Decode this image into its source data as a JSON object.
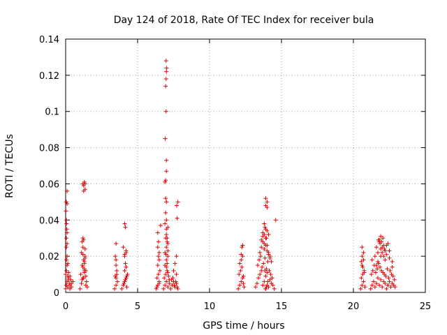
{
  "chart_data": {
    "type": "scatter",
    "title": "Day 124 of 2018, Rate Of TEC Index for receiver bula",
    "xlabel": "GPS time / hours",
    "ylabel": "ROTI / TECUs",
    "xlim": [
      0,
      25
    ],
    "ylim": [
      0,
      0.14
    ],
    "xticks": [
      0,
      5,
      10,
      15,
      20,
      25
    ],
    "yticks": [
      0,
      0.02,
      0.04,
      0.06,
      0.08,
      0.1,
      0.12,
      0.14
    ],
    "xtick_labels": [
      "0",
      "5",
      "10",
      "15",
      "20",
      "25"
    ],
    "ytick_labels": [
      "0",
      "0.02",
      "0.04",
      "0.06",
      "0.08",
      "0.1",
      "0.12",
      "0.14"
    ],
    "grid": true,
    "marker": "+",
    "color": "#e00000",
    "series": [
      {
        "name": "ROTI",
        "x": [
          0.0,
          0.05,
          0.1,
          0.15,
          0.2,
          0.25,
          0.3,
          0.0,
          0.05,
          0.1,
          0.15,
          0.2,
          0.3,
          0.4,
          0.5,
          0.05,
          0.1,
          0.15,
          0.05,
          0.1,
          0.05,
          0.1,
          0.08,
          0.05,
          0.1,
          0.05,
          0.1,
          0.02,
          0.06,
          0.2,
          0.3,
          0.4,
          0.35,
          1.0,
          1.1,
          1.2,
          1.3,
          1.4,
          1.5,
          1.05,
          1.15,
          1.25,
          1.35,
          1.45,
          1.1,
          1.2,
          1.3,
          1.4,
          1.15,
          1.25,
          1.35,
          1.2,
          1.3,
          1.2,
          1.3,
          1.25,
          1.15,
          1.35,
          1.2,
          1.3,
          1.4,
          1.25,
          1.35,
          1.2,
          1.3,
          1.25,
          1.35,
          3.4,
          3.5,
          3.6,
          3.45,
          3.55,
          3.5,
          3.5,
          3.45,
          3.55,
          3.5,
          3.5,
          3.9,
          4.0,
          4.1,
          4.2,
          4.3,
          4.05,
          4.15,
          4.25,
          4.1,
          4.2,
          4.15,
          4.25,
          4.1,
          4.2,
          4.0,
          4.1,
          4.2,
          4.1,
          4.15,
          6.3,
          6.4,
          6.5,
          6.35,
          6.45,
          6.55,
          6.4,
          6.5,
          6.45,
          6.5,
          6.4,
          6.45,
          6.35,
          6.5,
          6.4,
          6.6,
          6.8,
          6.9,
          7.0,
          7.1,
          7.2,
          6.85,
          6.95,
          7.05,
          7.15,
          6.9,
          7.0,
          7.1,
          7.2,
          6.9,
          7.0,
          7.1,
          7.05,
          6.95,
          7.0,
          7.1,
          7.0,
          7.05,
          6.9,
          7.0,
          7.1,
          6.95,
          7.0,
          6.95,
          6.9,
          6.95,
          7.0,
          7.0,
          6.92,
          6.98,
          6.95,
          6.98,
          7.0,
          7.02,
          6.98,
          6.97,
          7.05,
          7.0,
          7.1,
          7.3,
          7.4,
          7.5,
          7.6,
          7.7,
          7.8,
          7.35,
          7.45,
          7.55,
          7.65,
          7.75,
          7.5,
          7.6,
          7.7,
          7.75,
          7.72,
          7.8,
          7.7,
          12.0,
          12.1,
          12.2,
          12.3,
          12.4,
          12.05,
          12.15,
          12.25,
          12.35,
          12.1,
          12.2,
          12.3,
          12.2,
          12.35,
          12.25,
          12.3,
          13.2,
          13.3,
          13.4,
          13.5,
          13.6,
          13.7,
          13.8,
          13.9,
          14.0,
          14.1,
          14.2,
          14.3,
          14.4,
          14.5,
          13.35,
          13.45,
          13.55,
          13.65,
          13.75,
          13.85,
          13.95,
          14.05,
          14.15,
          14.25,
          14.35,
          13.5,
          13.6,
          13.7,
          13.8,
          13.9,
          14.0,
          14.1,
          14.2,
          14.3,
          13.6,
          13.7,
          13.8,
          13.9,
          14.0,
          14.1,
          14.2,
          13.7,
          13.8,
          13.9,
          14.0,
          14.1,
          13.8,
          13.9,
          14.0,
          13.9,
          14.0,
          13.85,
          13.95,
          13.9,
          13.95,
          14.0,
          13.9,
          14.6,
          13.85,
          14.05,
          20.5,
          20.6,
          20.7,
          20.8,
          20.55,
          20.65,
          20.75,
          20.6,
          20.7,
          20.65,
          20.6,
          20.7,
          20.6,
          20.55,
          20.75,
          21.2,
          21.3,
          21.4,
          21.5,
          21.6,
          21.7,
          21.8,
          21.9,
          22.0,
          22.1,
          22.2,
          22.3,
          22.4,
          22.5,
          22.6,
          22.7,
          22.8,
          22.9,
          21.25,
          21.35,
          21.45,
          21.55,
          21.65,
          21.75,
          21.85,
          21.95,
          22.05,
          22.15,
          22.25,
          22.35,
          22.45,
          22.55,
          22.65,
          22.75,
          22.85,
          21.3,
          21.5,
          21.7,
          21.9,
          22.1,
          22.3,
          22.5,
          22.7,
          21.6,
          21.8,
          22.0,
          22.2,
          22.4,
          21.7,
          21.9,
          22.1,
          22.3,
          21.75,
          21.85,
          21.95,
          22.05,
          22.15,
          21.9,
          22.0,
          21.8,
          22.2,
          22.5,
          21.6,
          22.7
        ],
        "y": [
          0.002,
          0.004,
          0.006,
          0.003,
          0.008,
          0.005,
          0.002,
          0.01,
          0.012,
          0.015,
          0.009,
          0.007,
          0.004,
          0.003,
          0.006,
          0.018,
          0.02,
          0.016,
          0.025,
          0.027,
          0.03,
          0.033,
          0.035,
          0.04,
          0.049,
          0.05,
          0.056,
          0.045,
          0.038,
          0.011,
          0.009,
          0.005,
          0.007,
          0.002,
          0.005,
          0.008,
          0.012,
          0.004,
          0.003,
          0.01,
          0.015,
          0.018,
          0.02,
          0.006,
          0.022,
          0.025,
          0.013,
          0.009,
          0.028,
          0.029,
          0.024,
          0.03,
          0.017,
          0.014,
          0.011,
          0.008,
          0.007,
          0.019,
          0.021,
          0.016,
          0.012,
          0.056,
          0.057,
          0.06,
          0.061,
          0.059,
          0.06,
          0.002,
          0.004,
          0.006,
          0.009,
          0.012,
          0.015,
          0.018,
          0.02,
          0.01,
          0.027,
          0.008,
          0.002,
          0.004,
          0.006,
          0.008,
          0.01,
          0.005,
          0.007,
          0.003,
          0.012,
          0.014,
          0.016,
          0.009,
          0.02,
          0.022,
          0.025,
          0.021,
          0.023,
          0.038,
          0.036,
          0.002,
          0.004,
          0.006,
          0.008,
          0.01,
          0.012,
          0.015,
          0.018,
          0.02,
          0.022,
          0.025,
          0.028,
          0.003,
          0.005,
          0.033,
          0.037,
          0.002,
          0.004,
          0.006,
          0.003,
          0.005,
          0.008,
          0.01,
          0.012,
          0.009,
          0.015,
          0.018,
          0.02,
          0.007,
          0.022,
          0.025,
          0.023,
          0.028,
          0.03,
          0.032,
          0.027,
          0.035,
          0.03,
          0.038,
          0.04,
          0.036,
          0.044,
          0.05,
          0.052,
          0.061,
          0.062,
          0.067,
          0.073,
          0.085,
          0.1,
          0.114,
          0.118,
          0.122,
          0.124,
          0.128,
          0.021,
          0.016,
          0.014,
          0.011,
          0.002,
          0.004,
          0.006,
          0.003,
          0.005,
          0.002,
          0.007,
          0.008,
          0.004,
          0.006,
          0.003,
          0.012,
          0.016,
          0.02,
          0.041,
          0.048,
          0.05,
          0.01,
          0.002,
          0.004,
          0.006,
          0.008,
          0.003,
          0.01,
          0.012,
          0.014,
          0.005,
          0.016,
          0.018,
          0.02,
          0.021,
          0.009,
          0.025,
          0.026,
          0.003,
          0.005,
          0.008,
          0.01,
          0.012,
          0.004,
          0.006,
          0.009,
          0.011,
          0.003,
          0.007,
          0.005,
          0.004,
          0.002,
          0.015,
          0.018,
          0.02,
          0.014,
          0.016,
          0.019,
          0.013,
          0.017,
          0.012,
          0.01,
          0.008,
          0.022,
          0.025,
          0.028,
          0.024,
          0.026,
          0.023,
          0.021,
          0.019,
          0.017,
          0.029,
          0.031,
          0.027,
          0.03,
          0.026,
          0.022,
          0.02,
          0.033,
          0.032,
          0.035,
          0.034,
          0.032,
          0.038,
          0.048,
          0.05,
          0.052,
          0.047,
          0.036,
          0.03,
          0.002,
          0.003,
          0.004,
          0.002,
          0.04,
          0.012,
          0.006,
          0.002,
          0.004,
          0.006,
          0.003,
          0.008,
          0.01,
          0.012,
          0.015,
          0.018,
          0.014,
          0.02,
          0.022,
          0.025,
          0.017,
          0.011,
          0.002,
          0.004,
          0.006,
          0.003,
          0.005,
          0.008,
          0.004,
          0.007,
          0.003,
          0.006,
          0.005,
          0.002,
          0.004,
          0.006,
          0.003,
          0.005,
          0.004,
          0.003,
          0.01,
          0.012,
          0.015,
          0.011,
          0.013,
          0.016,
          0.014,
          0.012,
          0.011,
          0.01,
          0.009,
          0.013,
          0.008,
          0.012,
          0.01,
          0.009,
          0.007,
          0.018,
          0.02,
          0.022,
          0.024,
          0.026,
          0.021,
          0.019,
          0.017,
          0.025,
          0.028,
          0.022,
          0.023,
          0.027,
          0.017,
          0.02,
          0.02,
          0.026,
          0.029,
          0.027,
          0.028,
          0.03,
          0.024,
          0.031,
          0.025,
          0.029,
          0.018,
          0.023,
          0.015,
          0.014
        ]
      }
    ]
  }
}
